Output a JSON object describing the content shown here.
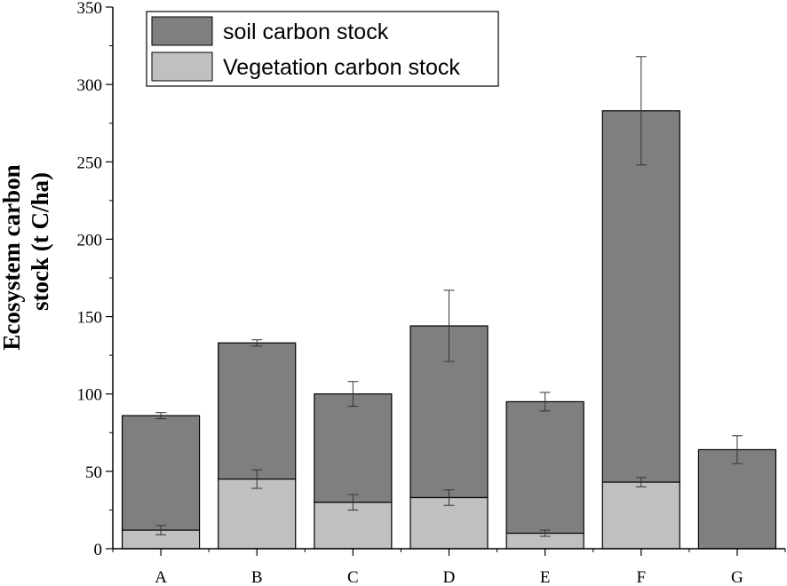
{
  "chart_data": {
    "type": "bar",
    "stacked": true,
    "categories": [
      "A",
      "B",
      "C",
      "D",
      "E",
      "F",
      "G"
    ],
    "series": [
      {
        "name": "soil carbon stock",
        "values": [
          74,
          88,
          70,
          111,
          85,
          240,
          64
        ],
        "error": [
          2,
          2,
          8,
          23,
          6,
          35,
          9
        ],
        "color": "#7f7f7f"
      },
      {
        "name": "Vegetation carbon stock",
        "values": [
          12,
          45,
          30,
          33,
          10,
          43,
          0
        ],
        "error": [
          3,
          6,
          5,
          5,
          2,
          3,
          0
        ],
        "color": "#c0c0c0"
      }
    ],
    "title": "",
    "xlabel": "",
    "ylabel_lines": [
      "Ecosystem carbon",
      "stock (t C/ha)"
    ],
    "ylim": [
      0,
      350
    ],
    "yticks": [
      0,
      50,
      100,
      150,
      200,
      250,
      300,
      350
    ],
    "grid": false,
    "legend_position": "top-left"
  }
}
